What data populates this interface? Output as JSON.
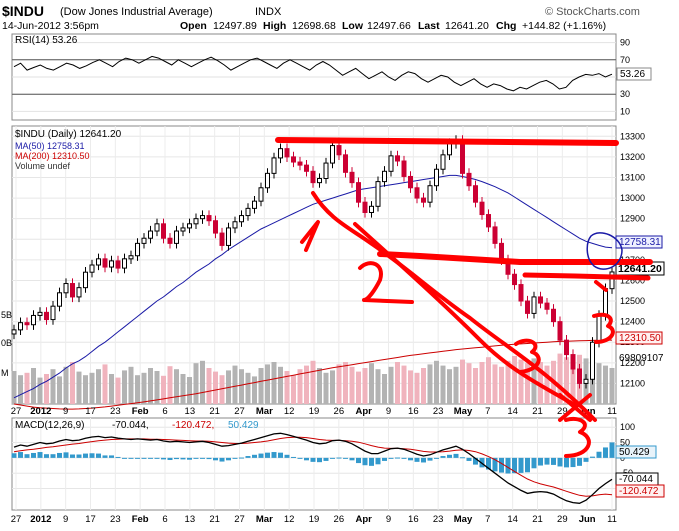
{
  "header": {
    "symbol": "$INDU",
    "name": "(Dow Jones Industrial Average)",
    "exchange": "INDX",
    "date": "14-Jun-2012 3:56pm",
    "open_label": "Open",
    "open": "12497.89",
    "high_label": "High",
    "high": "12698.68",
    "low_label": "Low",
    "low": "12497.66",
    "last_label": "Last",
    "last": "12641.20",
    "chg_label": "Chg",
    "chg": "+144.82 (+1.16%)",
    "watermark": "© StockCharts.com"
  },
  "colors": {
    "up_bar": "#000000",
    "down_bar": "#cc0033",
    "ma50": "#1a1aa6",
    "ma200": "#cc0000",
    "volume_up": "#b3b3b3",
    "volume_down": "#f0b3bd",
    "macd_line": "#000000",
    "signal_line": "#cc0000",
    "histogram": "#3399cc",
    "annotation": "#ff0000"
  },
  "chart_data": [
    {
      "type": "line",
      "panel": "rsi",
      "legend": "RSI(14) 53.26",
      "current_value_label": "53.26",
      "y_ticks": [
        "90",
        "70",
        "50",
        "30",
        "10"
      ],
      "ylim": [
        0,
        100
      ],
      "reference_lines": [
        70,
        30
      ],
      "values": [
        62,
        66,
        58,
        61,
        64,
        60,
        58,
        62,
        66,
        64,
        60,
        63,
        67,
        70,
        66,
        62,
        68,
        72,
        70,
        66,
        70,
        74,
        72,
        68,
        64,
        70,
        66,
        62,
        66,
        70,
        73,
        69,
        64,
        58,
        62,
        66,
        70,
        72,
        68,
        64,
        60,
        66,
        70,
        66,
        62,
        58,
        64,
        68,
        64,
        58,
        52,
        56,
        60,
        54,
        48,
        52,
        56,
        50,
        46,
        52,
        56,
        54,
        48,
        44,
        48,
        52,
        50,
        44,
        40,
        44,
        48,
        42,
        38,
        42,
        40,
        36,
        34,
        38,
        36,
        40,
        44,
        46,
        42,
        36,
        38,
        46,
        50,
        53,
        52,
        54,
        50,
        53.26
      ]
    },
    {
      "type": "candlestick",
      "panel": "price",
      "legend": {
        "symbol": "$INDU (Daily) 12641.20",
        "ma50": "MA(50) 12758.31",
        "ma200": "MA(200) 12310.50",
        "volume": "Volume undef"
      },
      "y_ticks": [
        "13300",
        "13200",
        "13100",
        "13000",
        "12900",
        "12800",
        "12700",
        "12600",
        "12500",
        "12400",
        "12300",
        "12200",
        "12100"
      ],
      "ylim": [
        12000,
        13350
      ],
      "right_labels": {
        "ma50": "12758.31",
        "last": "12641.20",
        "ma200": "12310.50",
        "volume": "69809107"
      },
      "left_volume_labels": [
        "5B",
        "0B",
        "M"
      ],
      "x_ticks": [
        "27",
        "2012",
        "9",
        "17",
        "23",
        "Feb",
        "6",
        "13",
        "21",
        "27",
        "Mar",
        "12",
        "19",
        "26",
        "Apr",
        "9",
        "16",
        "23",
        "May",
        "7",
        "14",
        "21",
        "29",
        "Jun",
        "11"
      ],
      "close": [
        12360,
        12395,
        12385,
        12430,
        12445,
        12410,
        12475,
        12540,
        12585,
        12520,
        12565,
        12640,
        12675,
        12705,
        12665,
        12695,
        12660,
        12705,
        12720,
        12780,
        12805,
        12840,
        12875,
        12805,
        12780,
        12840,
        12855,
        12875,
        12900,
        12915,
        12890,
        12830,
        12770,
        12855,
        12885,
        12915,
        12950,
        12985,
        13050,
        13120,
        13195,
        13240,
        13200,
        13175,
        13160,
        13130,
        13075,
        13095,
        13170,
        13255,
        13210,
        13125,
        13075,
        12980,
        12930,
        12960,
        13080,
        13130,
        13205,
        13180,
        13105,
        13050,
        13000,
        12980,
        13060,
        13140,
        13210,
        13265,
        13280,
        13120,
        13060,
        12980,
        12920,
        12860,
        12780,
        12700,
        12630,
        12580,
        12500,
        12440,
        12520,
        12490,
        12460,
        12400,
        12310,
        12240,
        12170,
        12100,
        12120,
        12300,
        12430,
        12560,
        12641.2
      ],
      "ma50": [
        12030,
        12045,
        12060,
        12075,
        12095,
        12110,
        12130,
        12150,
        12175,
        12195,
        12210,
        12230,
        12255,
        12280,
        12300,
        12325,
        12350,
        12375,
        12400,
        12425,
        12450,
        12475,
        12500,
        12520,
        12545,
        12570,
        12590,
        12615,
        12640,
        12660,
        12680,
        12705,
        12725,
        12750,
        12770,
        12790,
        12810,
        12830,
        12850,
        12865,
        12880,
        12895,
        12910,
        12925,
        12940,
        12955,
        12970,
        12980,
        12990,
        13000,
        13010,
        13020,
        13030,
        13040,
        13045,
        13050,
        13055,
        13060,
        13065,
        13070,
        13075,
        13080,
        13085,
        13090,
        13095,
        13100,
        13105,
        13110,
        13110,
        13105,
        13098,
        13090,
        13080,
        13068,
        13055,
        13040,
        13025,
        13005,
        12985,
        12965,
        12945,
        12925,
        12905,
        12885,
        12865,
        12845,
        12825,
        12805,
        12790,
        12780,
        12770,
        12762,
        12758.31
      ],
      "ma200": [
        12000,
        11995,
        11990,
        11985,
        11982,
        11980,
        11978,
        11976,
        11975,
        11975,
        11976,
        11978,
        11980,
        11983,
        11986,
        11990,
        11994,
        11998,
        12002,
        12006,
        12010,
        12015,
        12020,
        12025,
        12030,
        12035,
        12040,
        12045,
        12050,
        12056,
        12062,
        12068,
        12074,
        12080,
        12086,
        12092,
        12098,
        12104,
        12110,
        12116,
        12122,
        12128,
        12134,
        12140,
        12146,
        12152,
        12158,
        12164,
        12170,
        12176,
        12181,
        12186,
        12191,
        12196,
        12201,
        12206,
        12211,
        12216,
        12221,
        12226,
        12231,
        12236,
        12240,
        12244,
        12248,
        12252,
        12256,
        12260,
        12264,
        12267,
        12270,
        12273,
        12276,
        12279,
        12282,
        12285,
        12288,
        12290,
        12292,
        12294,
        12296,
        12298,
        12300,
        12302,
        12304,
        12305,
        12306,
        12307,
        12308,
        12309,
        12309.5,
        12310,
        12310.5
      ],
      "volume": [
        55,
        48,
        52,
        60,
        44,
        50,
        58,
        46,
        62,
        70,
        54,
        48,
        52,
        58,
        66,
        50,
        44,
        56,
        62,
        48,
        52,
        60,
        55,
        47,
        63,
        58,
        50,
        45,
        68,
        72,
        60,
        54,
        48,
        56,
        64,
        58,
        52,
        46,
        60,
        66,
        70,
        62,
        55,
        48,
        58,
        64,
        72,
        60,
        52,
        56,
        66,
        70,
        62,
        54,
        60,
        68,
        58,
        50,
        62,
        70,
        64,
        56,
        52,
        60,
        66,
        72,
        64,
        58,
        62,
        74,
        68,
        60,
        70,
        78,
        66,
        62,
        72,
        80,
        74,
        68,
        76,
        70,
        64,
        72,
        84,
        78,
        70,
        82,
        76,
        72,
        68,
        64,
        60
      ]
    },
    {
      "type": "line",
      "panel": "macd",
      "legend": {
        "label": "MACD(12,26,9)",
        "macd": "-70.044,",
        "signal": "-120.472,",
        "hist": "50.429"
      },
      "y_ticks": [
        "100",
        "50",
        "0",
        "-50",
        "-100"
      ],
      "ylim": [
        -170,
        130
      ],
      "right_labels": {
        "hist": "50.429",
        "macd": "-70.044",
        "signal": "-120.472"
      },
      "macd": [
        35,
        42,
        38,
        44,
        50,
        46,
        48,
        55,
        60,
        56,
        58,
        64,
        68,
        70,
        66,
        68,
        64,
        62,
        60,
        62,
        60,
        58,
        60,
        55,
        52,
        54,
        52,
        50,
        52,
        54,
        50,
        44,
        38,
        40,
        44,
        48,
        54,
        60,
        66,
        72,
        78,
        80,
        76,
        70,
        64,
        58,
        50,
        46,
        48,
        56,
        58,
        54,
        46,
        34,
        22,
        14,
        14,
        22,
        30,
        32,
        28,
        20,
        12,
        6,
        10,
        18,
        26,
        32,
        38,
        28,
        14,
        -2,
        -18,
        -34,
        -50,
        -66,
        -82,
        -94,
        -106,
        -116,
        -112,
        -110,
        -112,
        -118,
        -130,
        -140,
        -146,
        -148,
        -138,
        -120,
        -100,
        -84,
        -70.044
      ],
      "signal": [
        20,
        23,
        26,
        28,
        31,
        34,
        36,
        39,
        42,
        45,
        47,
        50,
        53,
        56,
        58,
        60,
        61,
        62,
        62,
        62,
        62,
        61,
        61,
        60,
        59,
        58,
        57,
        56,
        55,
        55,
        54,
        52,
        50,
        48,
        47,
        47,
        48,
        50,
        52,
        55,
        59,
        63,
        66,
        67,
        67,
        66,
        63,
        60,
        58,
        57,
        57,
        56,
        54,
        51,
        46,
        40,
        35,
        32,
        31,
        31,
        30,
        28,
        25,
        21,
        19,
        19,
        20,
        22,
        25,
        26,
        24,
        20,
        13,
        4,
        -6,
        -18,
        -31,
        -44,
        -57,
        -69,
        -78,
        -85,
        -90,
        -95,
        -102,
        -109,
        -116,
        -122,
        -125,
        -124,
        -120,
        -118,
        -120.472
      ]
    }
  ],
  "annotations": {
    "labels": [
      "1",
      "2",
      "3",
      "3",
      "3",
      "3"
    ]
  }
}
